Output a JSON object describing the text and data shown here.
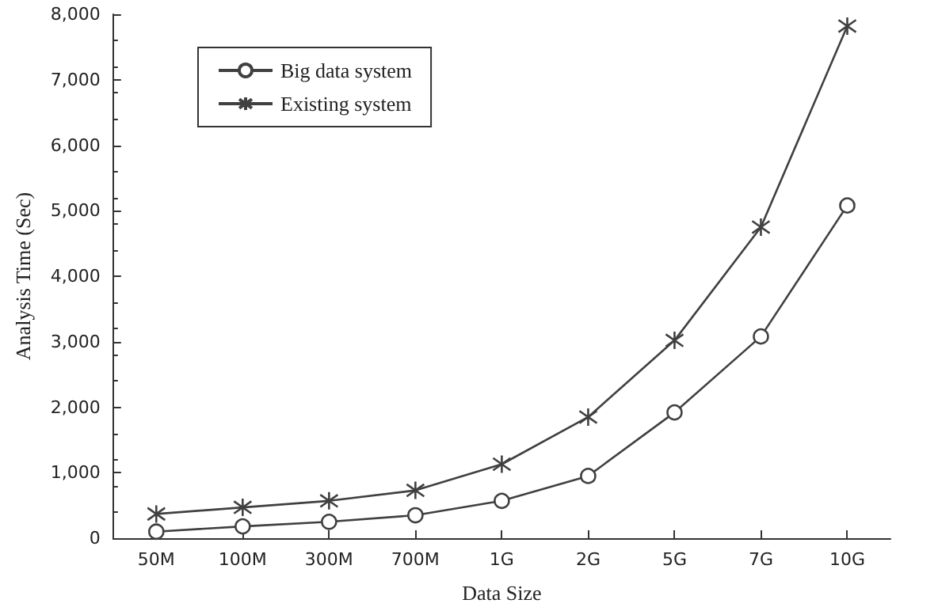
{
  "chart_data": {
    "type": "line",
    "xlabel": "Data Size",
    "ylabel": "Analysis Time (Sec)",
    "categories": [
      "50M",
      "100M",
      "300M",
      "700M",
      "1G",
      "2G",
      "5G",
      "7G",
      "10G"
    ],
    "series": [
      {
        "name": "Big data system",
        "color": "#404040",
        "marker": "circle",
        "values": [
          100,
          180,
          250,
          350,
          570,
          950,
          1920,
          3080,
          5080
        ]
      },
      {
        "name": "Existing system",
        "color": "#404040",
        "marker": "cross",
        "values": [
          370,
          470,
          570,
          730,
          1130,
          1850,
          3020,
          4750,
          7820
        ]
      }
    ],
    "ylim": [
      0,
      8000
    ],
    "yticks": [
      0,
      {
        "value": 1000,
        "label": "1,000"
      },
      {
        "value": 2000,
        "label": "2,000"
      },
      {
        "value": 3000,
        "label": "3,000"
      },
      {
        "value": 4000,
        "label": "4,000"
      },
      {
        "value": 5000,
        "label": "5,000"
      },
      {
        "value": 6000,
        "label": "6,000"
      },
      {
        "value": 7000,
        "label": "7,000"
      },
      {
        "value": 8000,
        "label": "8,000"
      }
    ],
    "grid": false,
    "legend": "top left",
    "line_style": "solid"
  }
}
